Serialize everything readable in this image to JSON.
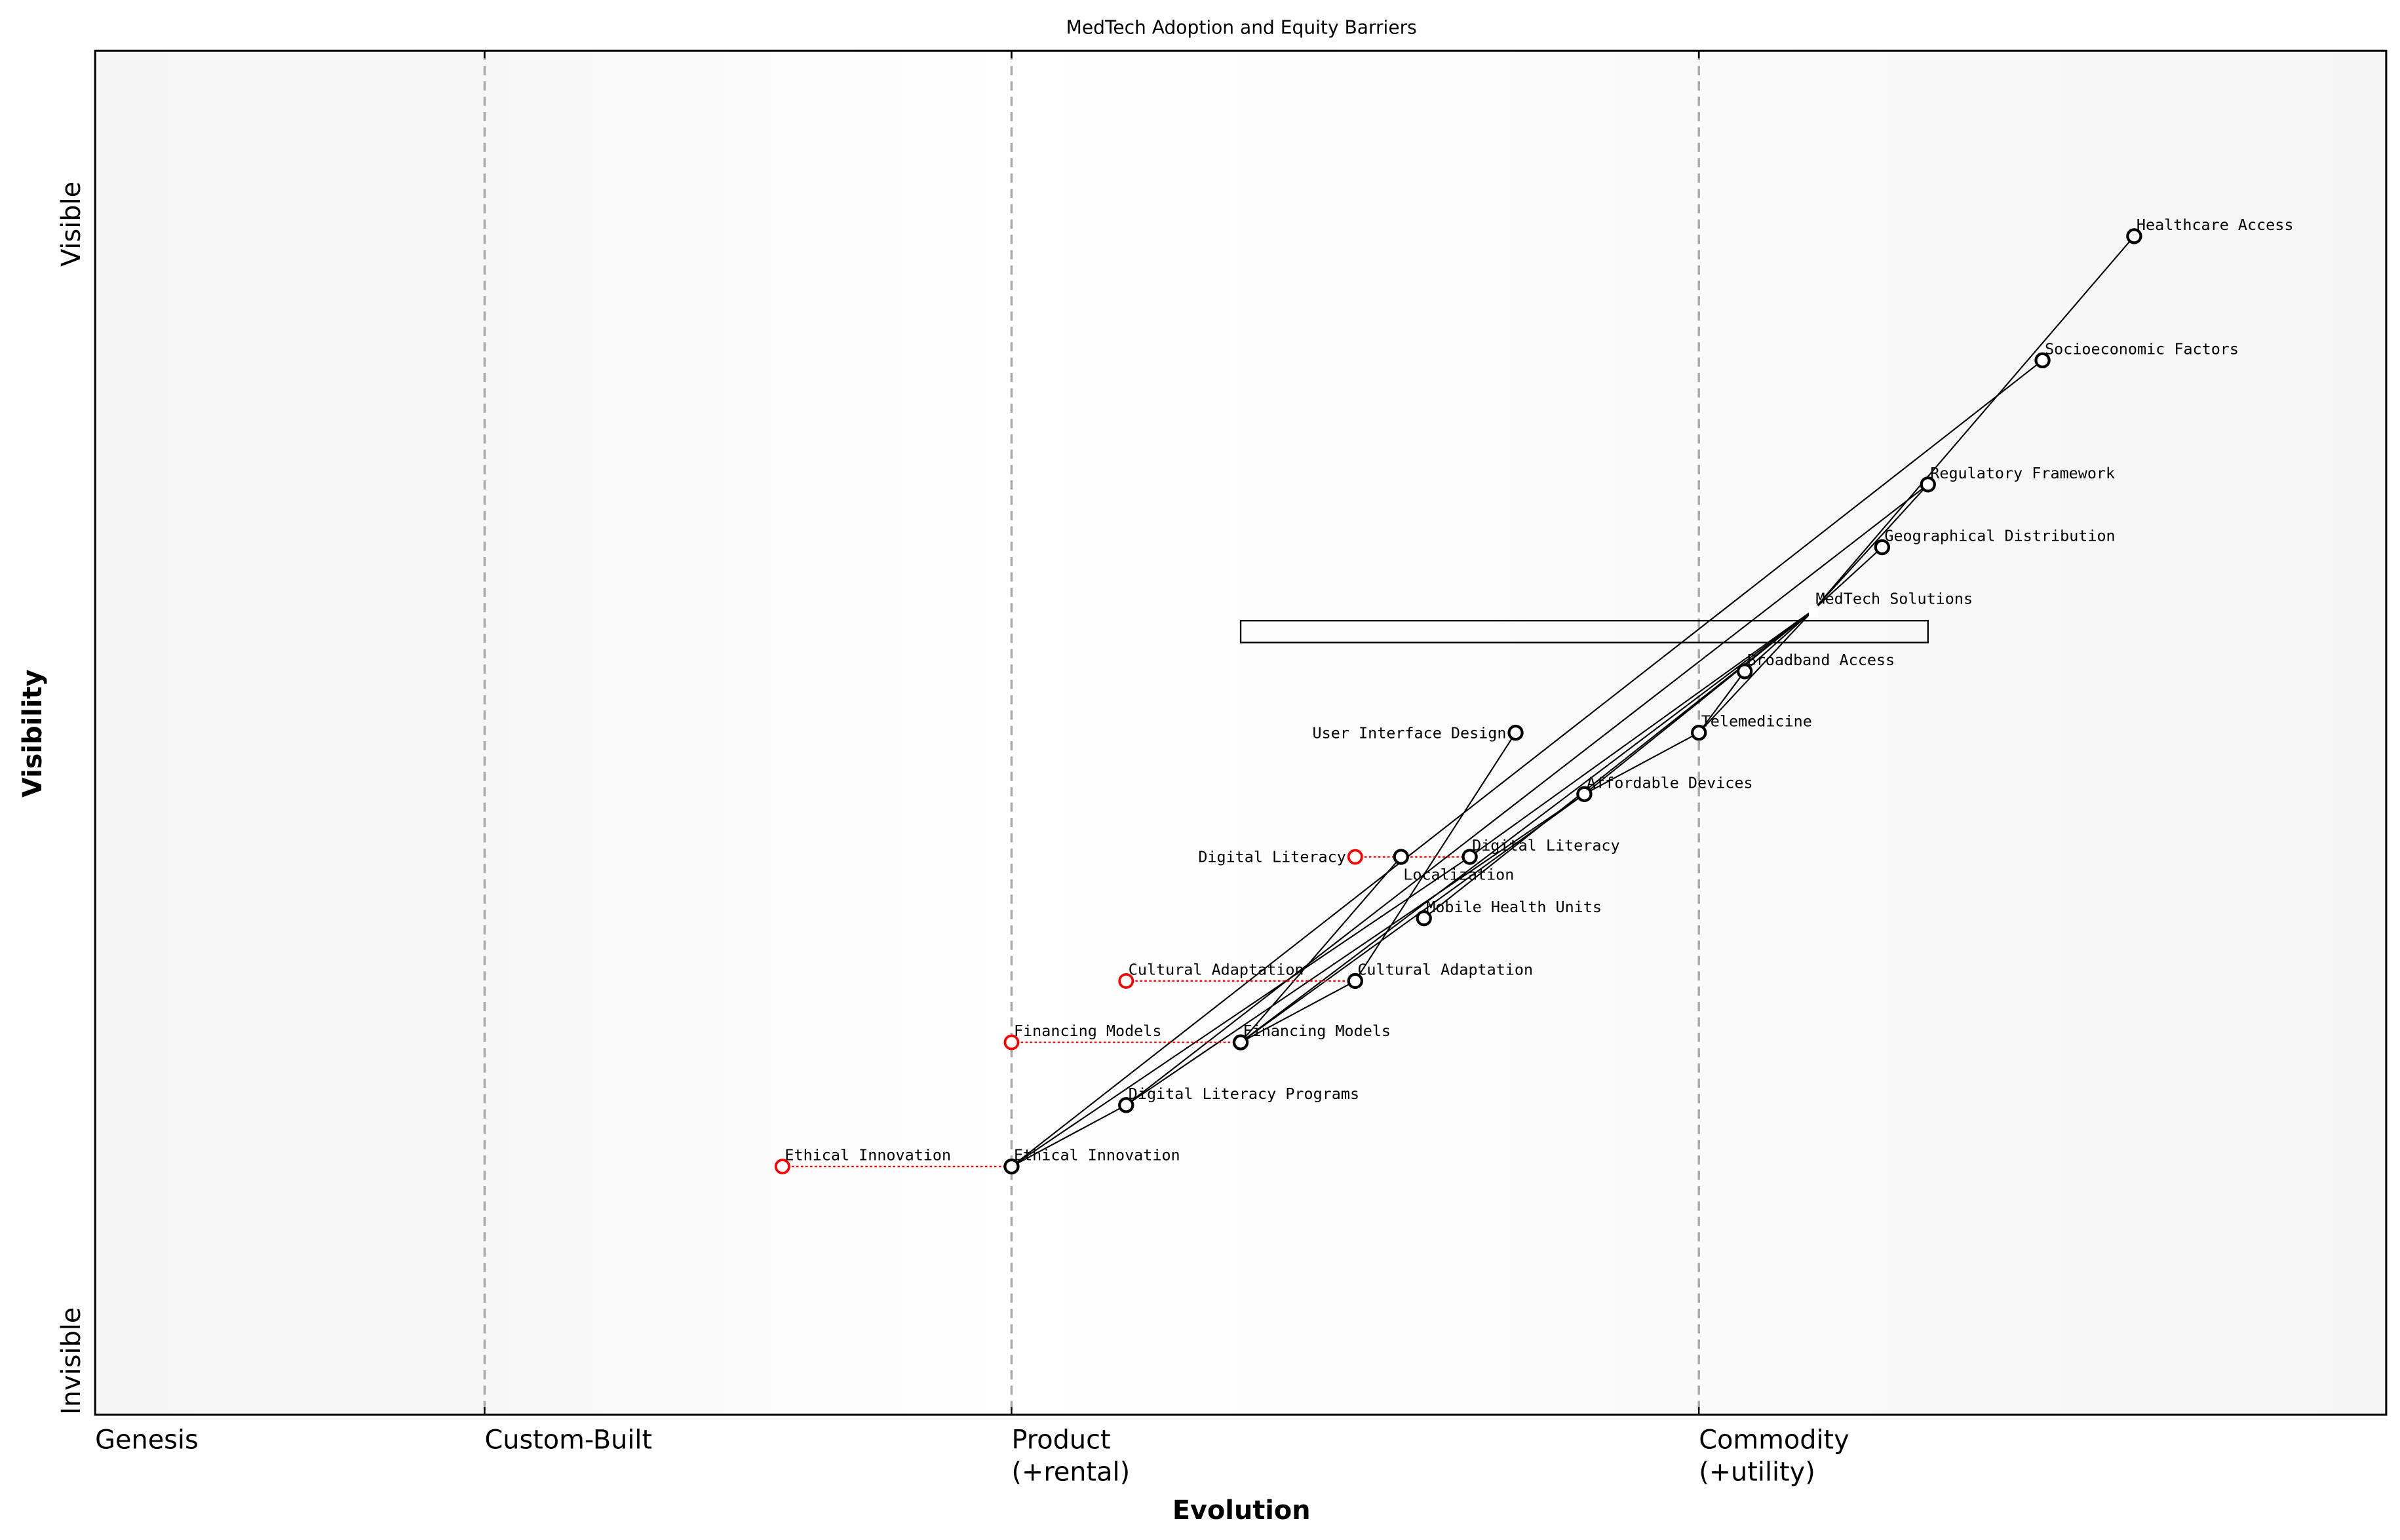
{
  "chart_data": {
    "type": "wardley-map",
    "title": "MedTech Adoption and Equity Barriers",
    "xlabel": "Evolution",
    "ylabel": "Visibility",
    "xlim": [
      0,
      1
    ],
    "ylim": [
      0,
      1
    ],
    "y_top_label": "Visible",
    "y_bottom_label": "Invisible",
    "stages": [
      {
        "label": "Genesis",
        "sublabel": "",
        "x": 0.0
      },
      {
        "label": "Custom-Built",
        "sublabel": "",
        "x": 0.17
      },
      {
        "label": "Product",
        "sublabel": "(+rental)",
        "x": 0.4
      },
      {
        "label": "Commodity",
        "sublabel": "(+utility)",
        "x": 0.7
      }
    ],
    "components": [
      {
        "name": "Healthcare Access",
        "evolution": 0.89,
        "visibility": 0.864
      },
      {
        "name": "Socioeconomic Factors",
        "evolution": 0.85,
        "visibility": 0.773
      },
      {
        "name": "Regulatory Framework",
        "evolution": 0.8,
        "visibility": 0.682
      },
      {
        "name": "Geographical Distribution",
        "evolution": 0.78,
        "visibility": 0.636
      },
      {
        "name": "MedTech Solutions",
        "evolution": 0.75,
        "visibility": 0.59,
        "marker": "none"
      },
      {
        "name": "Broadband Access",
        "evolution": 0.72,
        "visibility": 0.545
      },
      {
        "name": "Telemedicine",
        "evolution": 0.7,
        "visibility": 0.5
      },
      {
        "name": "User Interface Design",
        "evolution": 0.62,
        "visibility": 0.5
      },
      {
        "name": "Affordable Devices",
        "evolution": 0.65,
        "visibility": 0.455
      },
      {
        "name": "Localization",
        "evolution": 0.57,
        "visibility": 0.409
      },
      {
        "name": "Digital Literacy",
        "evolution": 0.6,
        "visibility": 0.409,
        "previous_evolution": 0.55
      },
      {
        "name": "Mobile Health Units",
        "evolution": 0.58,
        "visibility": 0.364
      },
      {
        "name": "Cultural Adaptation",
        "evolution": 0.55,
        "visibility": 0.318,
        "previous_evolution": 0.45
      },
      {
        "name": "Financing Models",
        "evolution": 0.5,
        "visibility": 0.273,
        "previous_evolution": 0.4
      },
      {
        "name": "Digital Literacy Programs",
        "evolution": 0.45,
        "visibility": 0.227
      },
      {
        "name": "Ethical Innovation",
        "evolution": 0.4,
        "visibility": 0.182,
        "previous_evolution": 0.3
      }
    ],
    "links": [
      [
        "Healthcare Access",
        "MedTech Solutions"
      ],
      [
        "Socioeconomic Factors",
        "Ethical Innovation"
      ],
      [
        "Regulatory Framework",
        "MedTech Solutions"
      ],
      [
        "Regulatory Framework",
        "Digital Literacy Programs"
      ],
      [
        "Geographical Distribution",
        "MedTech Solutions"
      ],
      [
        "MedTech Solutions",
        "Broadband Access"
      ],
      [
        "MedTech Solutions",
        "Telemedicine"
      ],
      [
        "MedTech Solutions",
        "Affordable Devices"
      ],
      [
        "MedTech Solutions",
        "Mobile Health Units"
      ],
      [
        "MedTech Solutions",
        "Financing Models"
      ],
      [
        "MedTech Solutions",
        "Digital Literacy"
      ],
      [
        "Broadband Access",
        "Telemedicine"
      ],
      [
        "Telemedicine",
        "Affordable Devices"
      ],
      [
        "Affordable Devices",
        "Financing Models"
      ],
      [
        "Affordable Devices",
        "Digital Literacy Programs"
      ],
      [
        "User Interface Design",
        "Cultural Adaptation"
      ],
      [
        "Localization",
        "Financing Models"
      ],
      [
        "Cultural Adaptation",
        "Financing Models"
      ],
      [
        "Digital Literacy Programs",
        "Ethical Innovation"
      ],
      [
        "Digital Literacy",
        "Ethical Innovation"
      ]
    ],
    "pipelines": [
      {
        "component": "MedTech Solutions",
        "evolution_start": 0.5,
        "evolution_end": 0.8,
        "visibility_top": 0.59,
        "visibility_bottom": 0.574
      }
    ],
    "colors": {
      "component": "#000000",
      "previous_position": "#ff0000",
      "stage_divider": "#aaaaaa",
      "background_edge": "#f5f5f5",
      "background_center": "#ffffff"
    }
  }
}
